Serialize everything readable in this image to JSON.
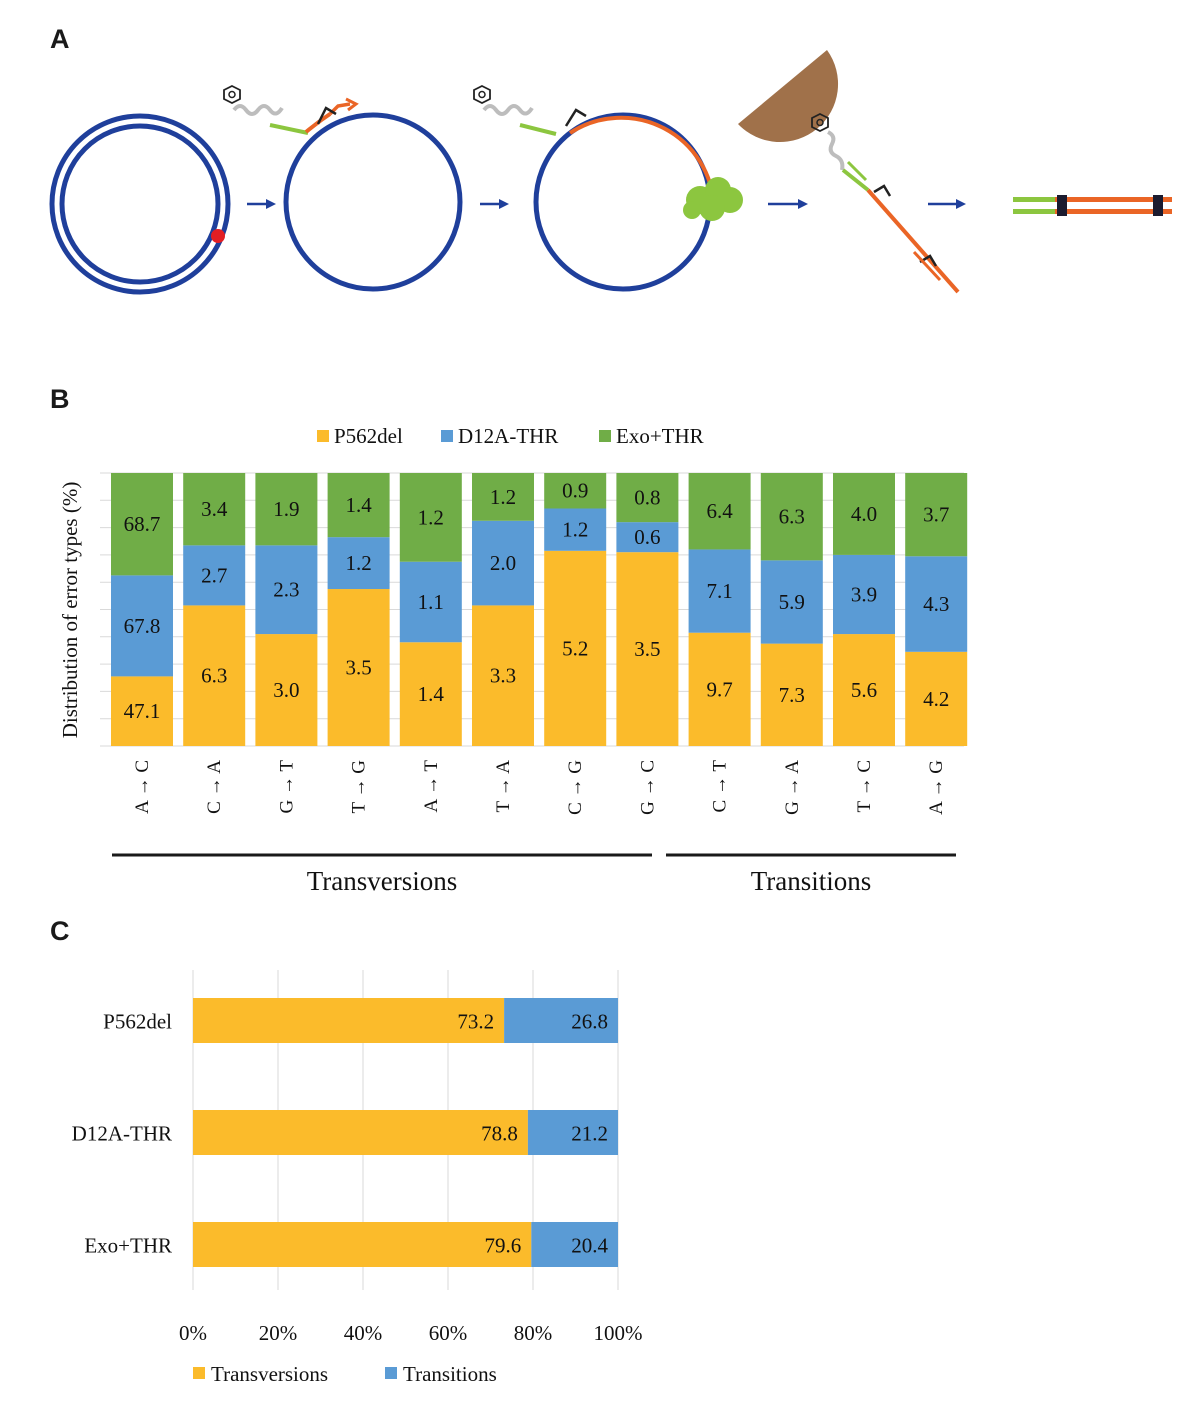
{
  "panels": {
    "a": {
      "letter": "A"
    },
    "b": {
      "letter": "B"
    },
    "c": {
      "letter": "C"
    }
  },
  "colors": {
    "yellow": "#fbbb2b",
    "blue": "#5a9bd5",
    "green": "#70ad47",
    "navy": "#1f3f9b",
    "orange": "#ea6526",
    "lime": "#8cc63f",
    "red": "#e31e24",
    "brown": "#a0714a",
    "gray": "#bdbdbd",
    "dark": "#1b1b2f",
    "enzyme": "#8cc63f"
  },
  "chart_data": [
    {
      "type": "bar",
      "stacked": true,
      "orientation": "vertical",
      "ylabel": "Distribution of error types (%)",
      "ylim": [
        0,
        100
      ],
      "grid": true,
      "legend_position": "top",
      "categories": [
        "A → C",
        "C → A",
        "G → T",
        "T → G",
        "A → T",
        "T → A",
        "C → G",
        "G → C",
        "C → T",
        "G → A",
        "T → C",
        "A → G"
      ],
      "groups": [
        {
          "label": "Transversions",
          "from": 0,
          "to": 7
        },
        {
          "label": "Transitions",
          "from": 8,
          "to": 11
        }
      ],
      "series": [
        {
          "name": "P562del",
          "color": "#fbbb2b",
          "labels": [
            "47.1",
            "6.3",
            "3.0",
            "3.5",
            "1.4",
            "3.3",
            "5.2",
            "3.5",
            "9.7",
            "7.3",
            "5.6",
            "4.2"
          ],
          "values": [
            25.5,
            51.5,
            41.0,
            57.5,
            38.0,
            51.5,
            71.5,
            71.0,
            41.5,
            37.5,
            41.0,
            34.5
          ]
        },
        {
          "name": "D12A-THR",
          "color": "#5a9bd5",
          "labels": [
            "67.8",
            "2.7",
            "2.3",
            "1.2",
            "1.1",
            "2.0",
            "1.2",
            "0.6",
            "7.1",
            "5.9",
            "3.9",
            "4.3"
          ],
          "values": [
            37.0,
            22.0,
            32.5,
            19.0,
            29.5,
            31.0,
            15.5,
            11.0,
            30.5,
            30.5,
            29.0,
            35.0
          ]
        },
        {
          "name": "Exo+THR",
          "color": "#70ad47",
          "labels": [
            "68.7",
            "3.4",
            "1.9",
            "1.4",
            "1.2",
            "1.2",
            "0.9",
            "0.8",
            "6.4",
            "6.3",
            "4.0",
            "3.7"
          ],
          "values": [
            37.5,
            26.5,
            26.5,
            23.5,
            32.5,
            17.5,
            13.0,
            18.0,
            28.0,
            32.0,
            30.0,
            30.5
          ]
        }
      ]
    },
    {
      "type": "bar",
      "stacked": true,
      "orientation": "horizontal",
      "xlim": [
        0,
        100
      ],
      "ticks": [
        "0%",
        "20%",
        "40%",
        "60%",
        "80%",
        "100%"
      ],
      "legend_position": "bottom",
      "categories": [
        "P562del",
        "D12A-THR",
        "Exo+THR"
      ],
      "series": [
        {
          "name": "Transversions",
          "color": "#fbbb2b",
          "values": [
            73.2,
            78.8,
            79.6
          ]
        },
        {
          "name": "Transitions",
          "color": "#5a9bd5",
          "values": [
            26.8,
            21.2,
            20.4
          ]
        }
      ]
    }
  ]
}
